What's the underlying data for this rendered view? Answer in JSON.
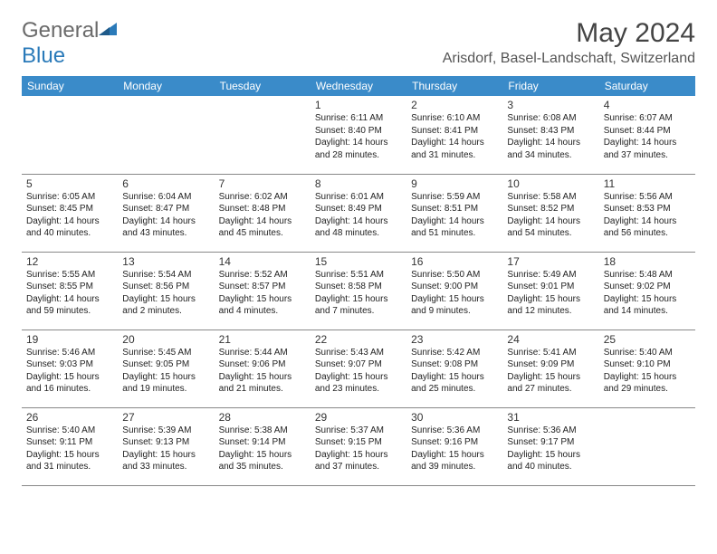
{
  "brand": {
    "part1": "General",
    "part2": "Blue"
  },
  "title": "May 2024",
  "location": "Arisdorf, Basel-Landschaft, Switzerland",
  "style": {
    "header_bg": "#3a8bc9",
    "header_color": "#ffffff",
    "border_color": "#888888",
    "title_color": "#444444",
    "text_color": "#222222",
    "daynum_fontsize": 12,
    "dayinfo_fontsize": 10,
    "title_fontsize": 30,
    "location_fontsize": 16,
    "weekday_fontsize": 12
  },
  "weekdays": [
    "Sunday",
    "Monday",
    "Tuesday",
    "Wednesday",
    "Thursday",
    "Friday",
    "Saturday"
  ],
  "weeks": [
    [
      null,
      null,
      null,
      {
        "n": "1",
        "sr": "6:11 AM",
        "ss": "8:40 PM",
        "dl": "14 hours and 28 minutes."
      },
      {
        "n": "2",
        "sr": "6:10 AM",
        "ss": "8:41 PM",
        "dl": "14 hours and 31 minutes."
      },
      {
        "n": "3",
        "sr": "6:08 AM",
        "ss": "8:43 PM",
        "dl": "14 hours and 34 minutes."
      },
      {
        "n": "4",
        "sr": "6:07 AM",
        "ss": "8:44 PM",
        "dl": "14 hours and 37 minutes."
      }
    ],
    [
      {
        "n": "5",
        "sr": "6:05 AM",
        "ss": "8:45 PM",
        "dl": "14 hours and 40 minutes."
      },
      {
        "n": "6",
        "sr": "6:04 AM",
        "ss": "8:47 PM",
        "dl": "14 hours and 43 minutes."
      },
      {
        "n": "7",
        "sr": "6:02 AM",
        "ss": "8:48 PM",
        "dl": "14 hours and 45 minutes."
      },
      {
        "n": "8",
        "sr": "6:01 AM",
        "ss": "8:49 PM",
        "dl": "14 hours and 48 minutes."
      },
      {
        "n": "9",
        "sr": "5:59 AM",
        "ss": "8:51 PM",
        "dl": "14 hours and 51 minutes."
      },
      {
        "n": "10",
        "sr": "5:58 AM",
        "ss": "8:52 PM",
        "dl": "14 hours and 54 minutes."
      },
      {
        "n": "11",
        "sr": "5:56 AM",
        "ss": "8:53 PM",
        "dl": "14 hours and 56 minutes."
      }
    ],
    [
      {
        "n": "12",
        "sr": "5:55 AM",
        "ss": "8:55 PM",
        "dl": "14 hours and 59 minutes."
      },
      {
        "n": "13",
        "sr": "5:54 AM",
        "ss": "8:56 PM",
        "dl": "15 hours and 2 minutes."
      },
      {
        "n": "14",
        "sr": "5:52 AM",
        "ss": "8:57 PM",
        "dl": "15 hours and 4 minutes."
      },
      {
        "n": "15",
        "sr": "5:51 AM",
        "ss": "8:58 PM",
        "dl": "15 hours and 7 minutes."
      },
      {
        "n": "16",
        "sr": "5:50 AM",
        "ss": "9:00 PM",
        "dl": "15 hours and 9 minutes."
      },
      {
        "n": "17",
        "sr": "5:49 AM",
        "ss": "9:01 PM",
        "dl": "15 hours and 12 minutes."
      },
      {
        "n": "18",
        "sr": "5:48 AM",
        "ss": "9:02 PM",
        "dl": "15 hours and 14 minutes."
      }
    ],
    [
      {
        "n": "19",
        "sr": "5:46 AM",
        "ss": "9:03 PM",
        "dl": "15 hours and 16 minutes."
      },
      {
        "n": "20",
        "sr": "5:45 AM",
        "ss": "9:05 PM",
        "dl": "15 hours and 19 minutes."
      },
      {
        "n": "21",
        "sr": "5:44 AM",
        "ss": "9:06 PM",
        "dl": "15 hours and 21 minutes."
      },
      {
        "n": "22",
        "sr": "5:43 AM",
        "ss": "9:07 PM",
        "dl": "15 hours and 23 minutes."
      },
      {
        "n": "23",
        "sr": "5:42 AM",
        "ss": "9:08 PM",
        "dl": "15 hours and 25 minutes."
      },
      {
        "n": "24",
        "sr": "5:41 AM",
        "ss": "9:09 PM",
        "dl": "15 hours and 27 minutes."
      },
      {
        "n": "25",
        "sr": "5:40 AM",
        "ss": "9:10 PM",
        "dl": "15 hours and 29 minutes."
      }
    ],
    [
      {
        "n": "26",
        "sr": "5:40 AM",
        "ss": "9:11 PM",
        "dl": "15 hours and 31 minutes."
      },
      {
        "n": "27",
        "sr": "5:39 AM",
        "ss": "9:13 PM",
        "dl": "15 hours and 33 minutes."
      },
      {
        "n": "28",
        "sr": "5:38 AM",
        "ss": "9:14 PM",
        "dl": "15 hours and 35 minutes."
      },
      {
        "n": "29",
        "sr": "5:37 AM",
        "ss": "9:15 PM",
        "dl": "15 hours and 37 minutes."
      },
      {
        "n": "30",
        "sr": "5:36 AM",
        "ss": "9:16 PM",
        "dl": "15 hours and 39 minutes."
      },
      {
        "n": "31",
        "sr": "5:36 AM",
        "ss": "9:17 PM",
        "dl": "15 hours and 40 minutes."
      },
      null
    ]
  ],
  "labels": {
    "sunrise": "Sunrise: ",
    "sunset": "Sunset: ",
    "daylight": "Daylight: "
  }
}
